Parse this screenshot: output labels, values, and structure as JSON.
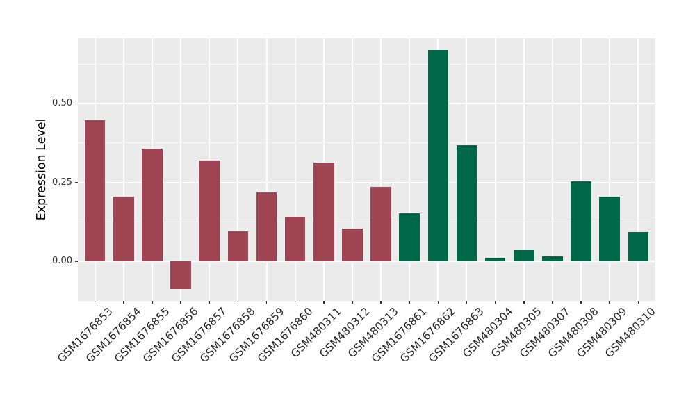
{
  "chart_data": {
    "type": "bar",
    "ylabel": "Expression Level",
    "categories": [
      "GSM1676853",
      "GSM1676854",
      "GSM1676855",
      "GSM1676856",
      "GSM1676857",
      "GSM1676858",
      "GSM1676859",
      "GSM1676860",
      "GSM480311",
      "GSM480312",
      "GSM480313",
      "GSM1676861",
      "GSM1676862",
      "GSM1676863",
      "GSM480304",
      "GSM480305",
      "GSM480307",
      "GSM480308",
      "GSM480309",
      "GSM480310"
    ],
    "values": [
      0.447,
      0.205,
      0.357,
      -0.089,
      0.32,
      0.095,
      0.218,
      0.141,
      0.314,
      0.104,
      0.235,
      0.153,
      0.67,
      0.369,
      0.011,
      0.035,
      0.016,
      0.254,
      0.205,
      0.093
    ],
    "groups": [
      "A",
      "A",
      "A",
      "A",
      "A",
      "A",
      "A",
      "A",
      "A",
      "A",
      "A",
      "B",
      "B",
      "B",
      "B",
      "B",
      "B",
      "B",
      "B",
      "B"
    ],
    "group_colors": {
      "A": "#9E4453",
      "B": "#006747"
    },
    "yticks": [
      0,
      0.25,
      0.5
    ],
    "ytick_labels": [
      "0.00",
      "0.25",
      "0.50"
    ],
    "yticks_minor": [
      0.125,
      0.375,
      0.625
    ],
    "ylim": [
      -0.126,
      0.708
    ],
    "legend": "none",
    "grid": "major+minor",
    "panel_background": "#EBEBEB",
    "grid_color": "#FFFFFF",
    "axis_text_color": "#333333"
  }
}
